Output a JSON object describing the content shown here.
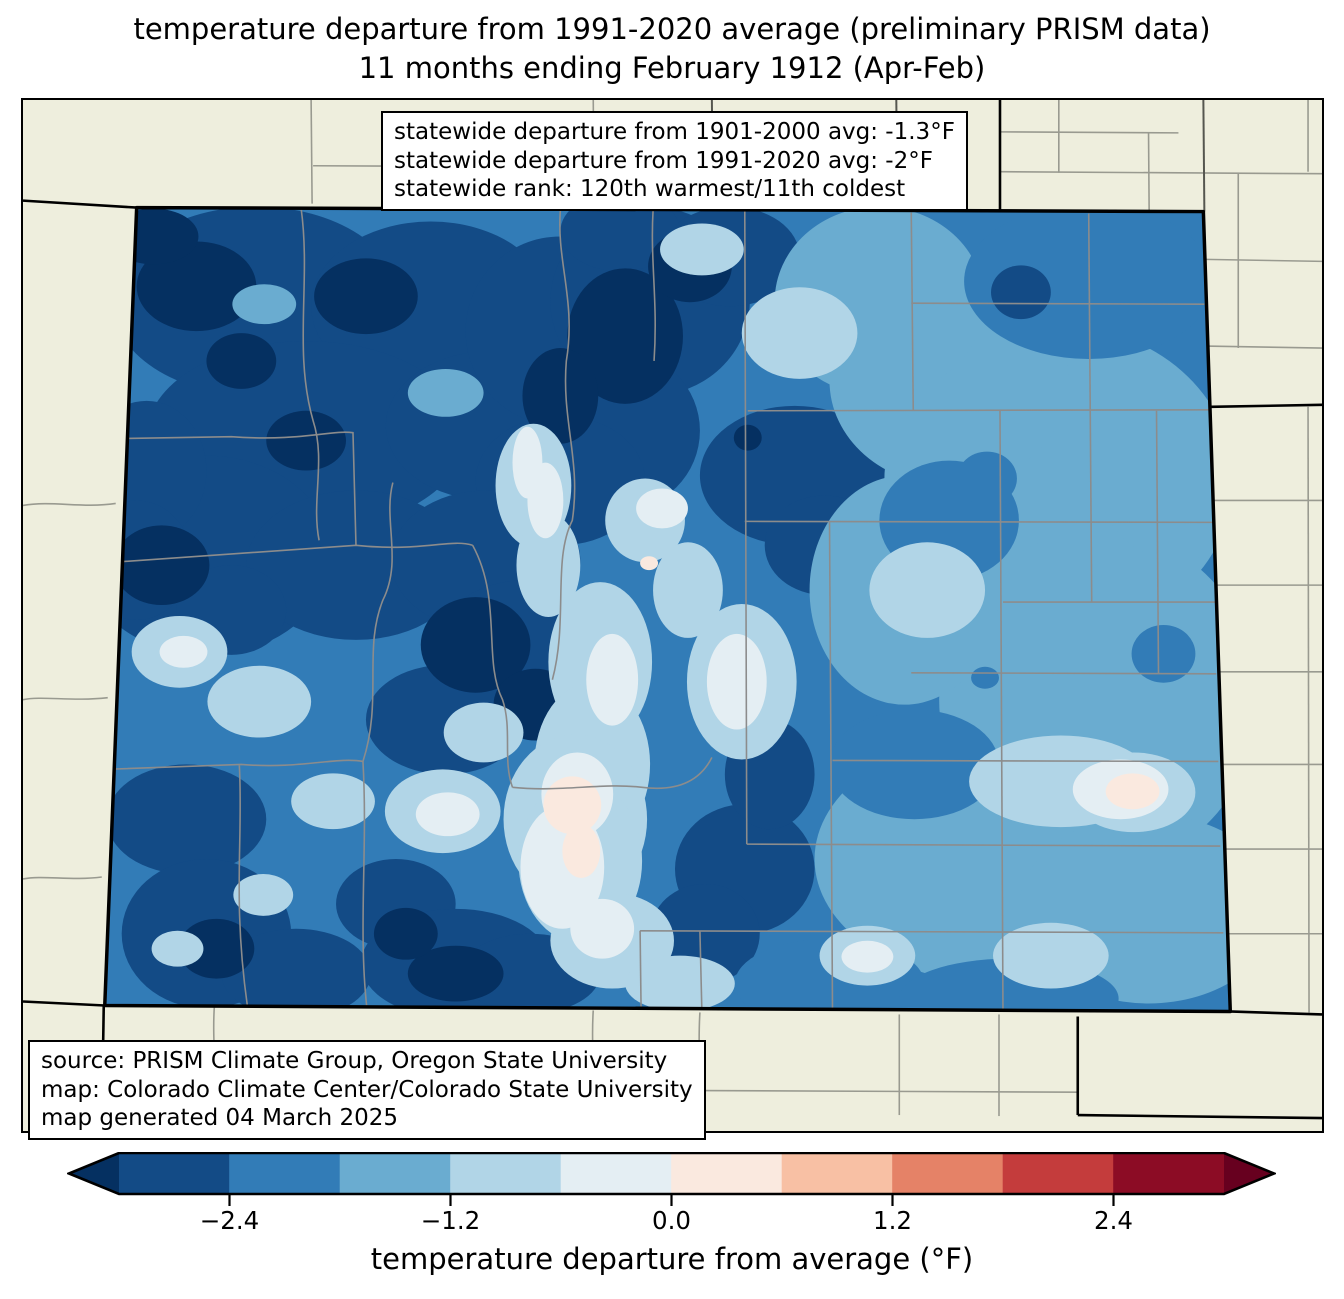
{
  "title": {
    "line1": "temperature departure from 1991-2020 average (preliminary PRISM data)",
    "line2": "11 months ending February 1912 (Apr-Feb)"
  },
  "stats_box": {
    "lines": [
      "statewide departure from 1901-2000 avg: -1.3°F",
      "statewide departure from 1991-2020 avg: -2°F",
      "statewide rank: 120th warmest/11th coldest"
    ]
  },
  "source_box": {
    "lines": [
      "source: PRISM Climate Group, Oregon State University",
      "map: Colorado Climate Center/Colorado State University",
      "map generated 04 March 2025"
    ]
  },
  "colorbar": {
    "label": "temperature departure from average (°F)",
    "ticks": [
      {
        "label": "−2.4",
        "position": 0.1
      },
      {
        "label": "−1.2",
        "position": 0.3
      },
      {
        "label": "0.0",
        "position": 0.5
      },
      {
        "label": "1.2",
        "position": 0.7
      },
      {
        "label": "2.4",
        "position": 0.9
      }
    ],
    "segments": [
      "#134b86",
      "#327cb7",
      "#6aacd0",
      "#b1d5e7",
      "#e4eef3",
      "#fae9df",
      "#f8c0a4",
      "#e58267",
      "#c43c3c",
      "#8c0c25"
    ],
    "under_color": "#053061",
    "over_color": "#67001f",
    "outline_color": "#000000"
  },
  "map": {
    "region_label": "Colorado",
    "background_color": "#eeeedd",
    "state_border_color": "#000000",
    "county_line_color": "#8c8c8c",
    "fill_bins": {
      "under": "#053061",
      "m30_m24": "#134b86",
      "m24_m18": "#327cb7",
      "m18_m12": "#6aacd0",
      "m12_m06": "#b1d5e7",
      "m06_000": "#e4eef3",
      "000_p06": "#fae9df"
    }
  },
  "chart_data": {
    "type": "heatmap",
    "title": "temperature departure from 1991-2020 average (preliminary PRISM data)",
    "subtitle": "11 months ending February 1912 (Apr-Feb)",
    "region": "Colorado",
    "colorbar_label": "temperature departure from average (°F)",
    "colorbar_ticks": [
      -2.4,
      -1.2,
      0.0,
      1.2,
      2.4
    ],
    "colorbar_range": [
      -3.0,
      3.0
    ],
    "bin_width_F": 0.6,
    "statewide_departure_from_1901_2000_avg_F": -1.3,
    "statewide_departure_from_1991_2020_avg_F": -2,
    "statewide_rank": "120th warmest/11th coldest",
    "dominant_anomaly": "negative (colder than average) across nearly the entire state"
  }
}
